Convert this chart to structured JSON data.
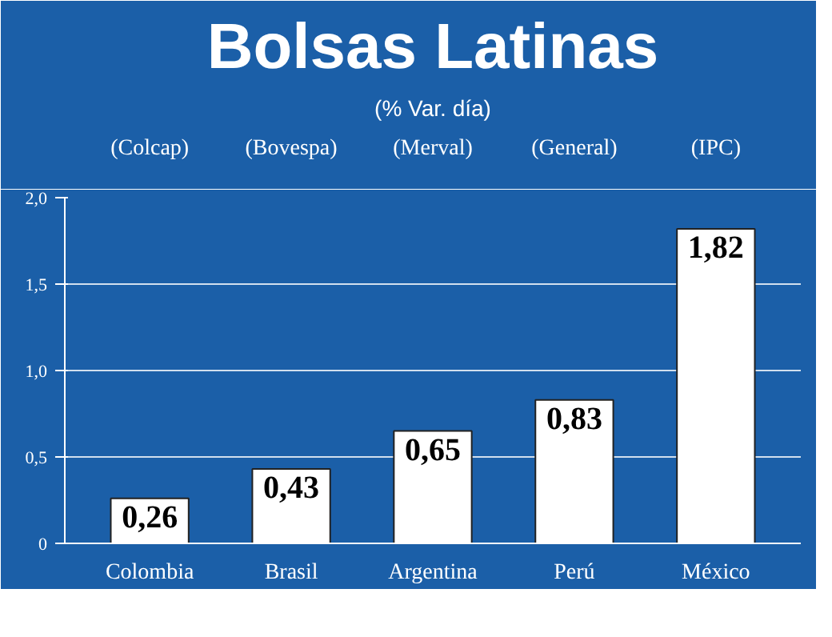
{
  "chart_data": {
    "type": "bar",
    "title": "Bolsas Latinas",
    "subtitle": "(% Var. día)",
    "categories": [
      "Colombia",
      "Brasil",
      "Argentina",
      "Perú",
      "México"
    ],
    "values": [
      0.26,
      0.43,
      0.65,
      0.83,
      1.82
    ],
    "value_labels": [
      "0,26",
      "0,43",
      "0,65",
      "0,83",
      "1,82"
    ],
    "color": "#ffffff",
    "annotations": [
      "(Colcap)",
      "(Bovespa)",
      "(Merval)",
      "(General)",
      "(IPC)"
    ],
    "ylim": [
      0,
      2.0
    ],
    "yticks": [
      {
        "value": 0,
        "label": "0"
      },
      {
        "value": 0.5,
        "label": "0,5"
      },
      {
        "value": 1.0,
        "label": "1,0"
      },
      {
        "value": 1.5,
        "label": "1,5"
      },
      {
        "value": 2.0,
        "label": "2,0"
      }
    ],
    "grid": "y"
  }
}
